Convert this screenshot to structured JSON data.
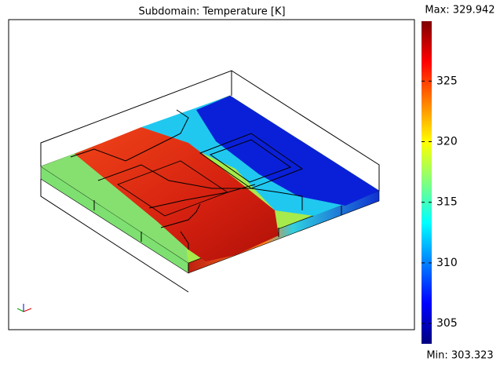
{
  "chart_data": {
    "type": "surface",
    "title": "Subdomain: Temperature [K]",
    "colorbar": {
      "lim": [
        303.323,
        329.942
      ],
      "ticks": [
        305,
        310,
        315,
        320,
        325
      ],
      "max_label": "Max: 329.942",
      "min_label": "Min: 303.323"
    }
  }
}
